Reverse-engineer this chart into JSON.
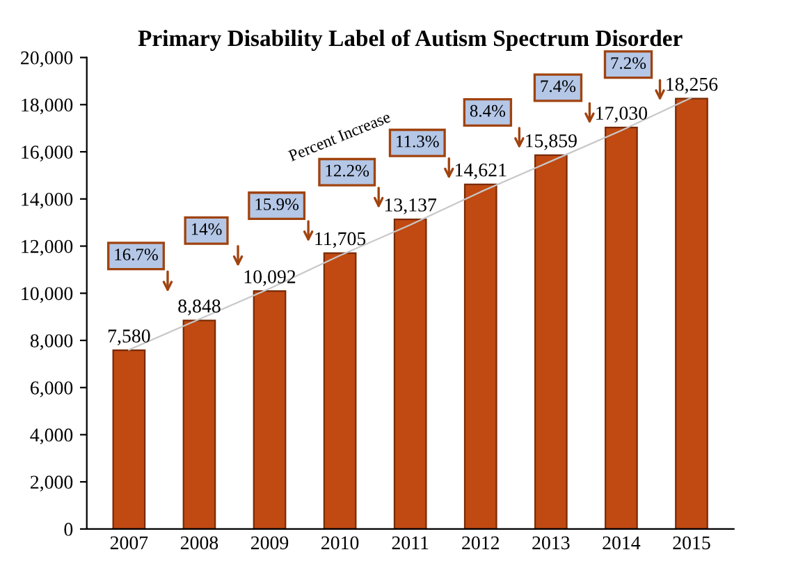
{
  "chart_data": {
    "type": "bar",
    "title": "Primary Disability Label of Autism Spectrum Disorder",
    "categories": [
      "2007",
      "2008",
      "2009",
      "2010",
      "2011",
      "2012",
      "2013",
      "2014",
      "2015"
    ],
    "series": [
      {
        "color": "#c04a12",
        "values": [
          7580,
          8848,
          10092,
          11705,
          13137,
          14621,
          15859,
          17030,
          18256
        ],
        "value_labels": [
          "7,580",
          "8,848",
          "10,092",
          "11,705",
          "13,137",
          "14,621",
          "15,859",
          "17,030",
          "18,256"
        ]
      },
      {
        "type": "line",
        "color": "#c8c8c8",
        "values": [
          7600,
          8900,
          10200,
          11600,
          12900,
          14300,
          15600,
          16900,
          18300
        ]
      }
    ],
    "ylim": [
      0,
      20000
    ],
    "yticks": [
      {
        "value": 0,
        "label": "0"
      },
      {
        "value": 2000,
        "label": "2,000"
      },
      {
        "value": 4000,
        "label": "4,000"
      },
      {
        "value": 6000,
        "label": "6,000"
      },
      {
        "value": 8000,
        "label": "8,000"
      },
      {
        "value": 10000,
        "label": "10,000"
      },
      {
        "value": 12000,
        "label": "12,000"
      },
      {
        "value": 14000,
        "label": "14,000"
      },
      {
        "value": 16000,
        "label": "16,000"
      },
      {
        "value": 18000,
        "label": "18,000"
      },
      {
        "value": 20000,
        "label": "20,000"
      }
    ],
    "grid": false,
    "legend": false,
    "annotations": [
      "Percent Increase",
      "16.7%",
      "14%",
      "15.9%",
      "12.2%",
      "11.3%",
      "8.4%",
      "7.4%",
      "7.2%"
    ]
  }
}
